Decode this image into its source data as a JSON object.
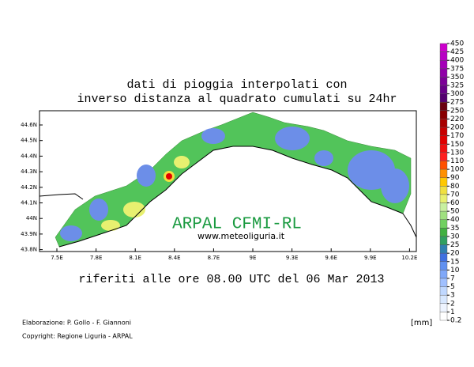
{
  "header": {
    "title_lines": [
      "dati di pioggia interpolati con",
      "inverso distanza al quadrato cumulati su 24hr"
    ]
  },
  "map": {
    "lon_labels": [
      "7.5E",
      "7.8E",
      "8.1E",
      "8.4E",
      "8.7E",
      "9E",
      "9.3E",
      "9.6E",
      "9.9E",
      "10.2E"
    ],
    "lat_labels": [
      "44.6N",
      "44.5N",
      "44.4N",
      "44.3N",
      "44.2N",
      "44.1N",
      "44N",
      "43.9N",
      "43.8N"
    ],
    "watermark": "ARPAL CFMI-RL",
    "website": "www.meteoliguria.it"
  },
  "subtitle": "riferiti alle ore 08.00 UTC del 06 Mar 2013",
  "colorbar": {
    "unit": "[mm]",
    "labels": [
      "450",
      "425",
      "400",
      "375",
      "350",
      "325",
      "300",
      "275",
      "250",
      "220",
      "200",
      "170",
      "150",
      "130",
      "110",
      "100",
      "90",
      "80",
      "70",
      "60",
      "50",
      "40",
      "35",
      "30",
      "25",
      "20",
      "15",
      "10",
      "7",
      "5",
      "3",
      "2",
      "1",
      "0.2"
    ],
    "colors": [
      "#cc00cc",
      "#b800c4",
      "#a400b8",
      "#9000a8",
      "#7c0098",
      "#680088",
      "#540070",
      "#6a0010",
      "#880000",
      "#a80000",
      "#c80000",
      "#e00000",
      "#f01010",
      "#ff2020",
      "#ff5000",
      "#ff9000",
      "#ffc800",
      "#f0e040",
      "#e8f070",
      "#c8f0a0",
      "#a0e080",
      "#70d060",
      "#40b040",
      "#30a060",
      "#3080b0",
      "#4070e0",
      "#6090f0",
      "#80a8f8",
      "#a0c0ff",
      "#c0d8ff",
      "#d8e8ff",
      "#eef4ff",
      "#ffffff"
    ]
  },
  "footer": {
    "credits": "Elaborazione: P. Gollo - F. Giannoni",
    "copyright": "Copyright: Regione Liguria - ARPAL"
  }
}
